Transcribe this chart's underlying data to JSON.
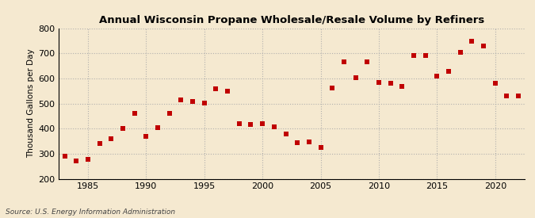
{
  "title": "Annual Wisconsin Propane Wholesale/Resale Volume by Refiners",
  "ylabel": "Thousand Gallons per Day",
  "source": "Source: U.S. Energy Information Administration",
  "background_color": "#f5e9d0",
  "plot_background_color": "#f5e9d0",
  "marker_color": "#c00000",
  "marker": "s",
  "marker_size": 4,
  "ylim": [
    200,
    800
  ],
  "yticks": [
    200,
    300,
    400,
    500,
    600,
    700,
    800
  ],
  "xlim": [
    1982.5,
    2022.5
  ],
  "xticks": [
    1985,
    1990,
    1995,
    2000,
    2005,
    2010,
    2015,
    2020
  ],
  "grid_color": "#aaaaaa",
  "years": [
    1983,
    1984,
    1985,
    1986,
    1987,
    1988,
    1989,
    1990,
    1991,
    1992,
    1993,
    1994,
    1995,
    1996,
    1997,
    1998,
    1999,
    2000,
    2001,
    2002,
    2003,
    2004,
    2005,
    2006,
    2007,
    2008,
    2009,
    2010,
    2011,
    2012,
    2013,
    2014,
    2015,
    2016,
    2017,
    2018,
    2019,
    2020,
    2021,
    2022
  ],
  "values": [
    290,
    270,
    278,
    340,
    360,
    400,
    460,
    368,
    404,
    462,
    515,
    507,
    502,
    558,
    548,
    420,
    416,
    420,
    408,
    378,
    345,
    348,
    325,
    562,
    666,
    603,
    665,
    585,
    582,
    567,
    693,
    692,
    610,
    630,
    705,
    750,
    730,
    580,
    530,
    530
  ]
}
